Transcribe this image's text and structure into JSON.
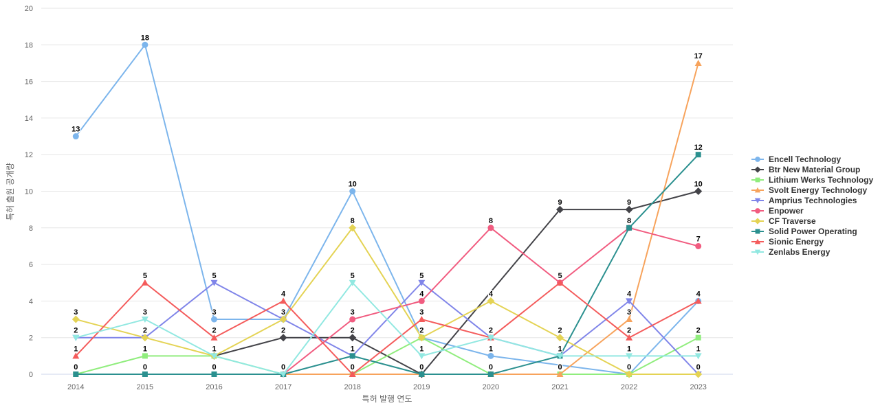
{
  "chart_data": {
    "type": "line",
    "title": "",
    "xlabel": "특허 발행 연도",
    "ylabel": "특허 출원 공개량",
    "x": [
      2014,
      2015,
      2016,
      2017,
      2018,
      2019,
      2020,
      2021,
      2022,
      2023
    ],
    "ylim": [
      0,
      20
    ],
    "ytick_step": 2,
    "grid": true,
    "legend_position": "middle-right",
    "connect_gaps": true,
    "series": [
      {
        "name": "Encell Technology",
        "color": "#7cb5ec",
        "marker": "circle",
        "values": [
          13,
          18,
          3,
          3,
          10,
          2,
          1,
          null,
          0,
          4
        ]
      },
      {
        "name": "Btr New Material Group",
        "color": "#434348",
        "marker": "diamond",
        "values": [
          null,
          null,
          1,
          2,
          2,
          0,
          null,
          9,
          9,
          10
        ]
      },
      {
        "name": "Lithium Werks Technology",
        "color": "#90ed7d",
        "marker": "square",
        "values": [
          0,
          1,
          1,
          0,
          0,
          2,
          0,
          0,
          0,
          2
        ]
      },
      {
        "name": "Svolt Energy Technology",
        "color": "#f7a35c",
        "marker": "triangle",
        "values": [
          null,
          null,
          null,
          0,
          0,
          0,
          0,
          0,
          3,
          17
        ]
      },
      {
        "name": "Amprius Technologies",
        "color": "#8085e9",
        "marker": "triangle-down",
        "values": [
          2,
          2,
          5,
          3,
          1,
          5,
          2,
          1,
          4,
          0
        ]
      },
      {
        "name": "Enpower",
        "color": "#f15c80",
        "marker": "circle",
        "values": [
          null,
          null,
          null,
          0,
          3,
          4,
          8,
          5,
          8,
          7
        ]
      },
      {
        "name": "CF Traverse",
        "color": "#e4d354",
        "marker": "diamond",
        "values": [
          3,
          2,
          1,
          3,
          8,
          2,
          4,
          2,
          0,
          0
        ]
      },
      {
        "name": "Solid Power Operating",
        "color": "#2b908f",
        "marker": "square",
        "values": [
          0,
          0,
          0,
          0,
          1,
          0,
          0,
          1,
          8,
          12
        ]
      },
      {
        "name": "Sionic Energy",
        "color": "#f45b5b",
        "marker": "triangle",
        "values": [
          1,
          5,
          2,
          4,
          0,
          3,
          2,
          5,
          2,
          4
        ]
      },
      {
        "name": "Zenlabs Energy",
        "color": "#91e8e1",
        "marker": "triangle-down",
        "values": [
          2,
          3,
          1,
          0,
          5,
          1,
          2,
          1,
          1,
          1
        ]
      }
    ]
  }
}
